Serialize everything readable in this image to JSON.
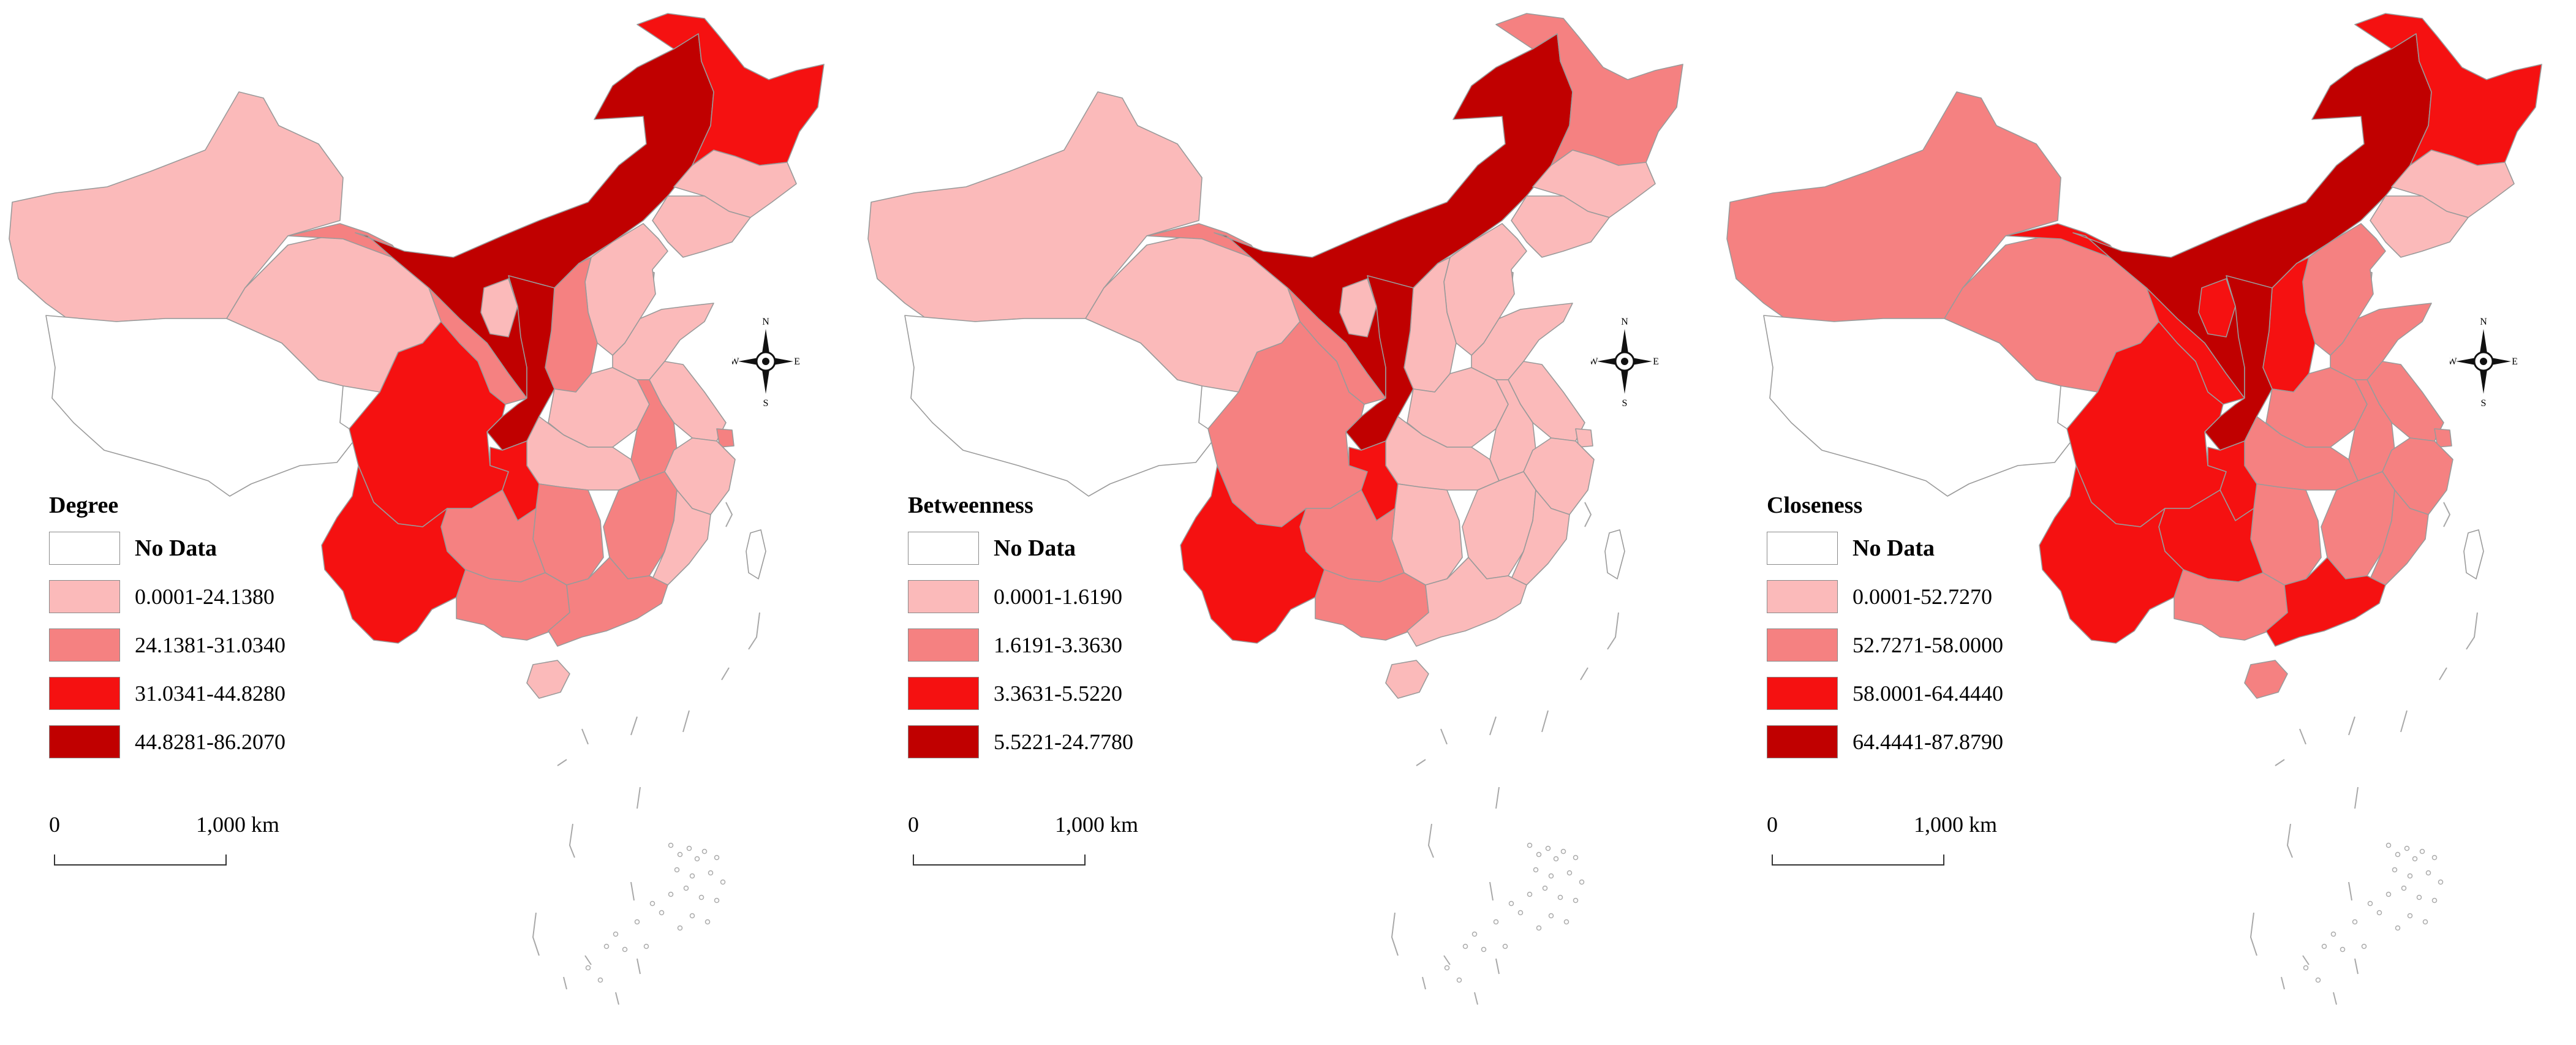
{
  "panels": [
    {
      "title": "Degree",
      "legend": {
        "nodata_label": "No Data",
        "classes": [
          {
            "label": "0.0001-24.1380",
            "color": "#FBBABA"
          },
          {
            "label": "24.1381-31.0340",
            "color": "#F58181"
          },
          {
            "label": "31.0341-44.8280",
            "color": "#F51111"
          },
          {
            "label": "44.8281-86.2070",
            "color": "#C00000"
          }
        ]
      },
      "regions": {
        "xinjiang": 1,
        "tibet": 0,
        "qinghai": 1,
        "gansu": 2,
        "inner_mongolia": 4,
        "heilongjiang": 3,
        "jilin": 1,
        "liaoning": 1,
        "beijing": 2,
        "tianjin": 1,
        "hebei": 1,
        "shanxi": 2,
        "ningxia": 1,
        "shaanxi": 4,
        "henan": 1,
        "shandong": 1,
        "jiangsu": 1,
        "anhui": 2,
        "shanghai": 2,
        "zhejiang": 1,
        "hubei": 1,
        "hunan": 2,
        "jiangxi": 2,
        "fujian": 1,
        "sichuan": 3,
        "chongqing": 3,
        "guizhou": 2,
        "yunnan": 3,
        "guangxi": 2,
        "guangdong": 2,
        "hainan": 1,
        "taiwan": 0
      }
    },
    {
      "title": "Betweenness",
      "legend": {
        "nodata_label": "No Data",
        "classes": [
          {
            "label": "0.0001-1.6190",
            "color": "#FBBABA"
          },
          {
            "label": "1.6191-3.3630",
            "color": "#F58181"
          },
          {
            "label": "3.3631-5.5220",
            "color": "#F51111"
          },
          {
            "label": "5.5221-24.7780",
            "color": "#C00000"
          }
        ]
      },
      "regions": {
        "xinjiang": 1,
        "tibet": 0,
        "qinghai": 1,
        "gansu": 2,
        "inner_mongolia": 4,
        "heilongjiang": 2,
        "jilin": 1,
        "liaoning": 1,
        "beijing": 1,
        "tianjin": 1,
        "hebei": 1,
        "shanxi": 1,
        "ningxia": 1,
        "shaanxi": 4,
        "henan": 1,
        "shandong": 1,
        "jiangsu": 1,
        "anhui": 1,
        "shanghai": 1,
        "zhejiang": 1,
        "hubei": 1,
        "hunan": 1,
        "jiangxi": 1,
        "fujian": 1,
        "sichuan": 2,
        "chongqing": 3,
        "guizhou": 2,
        "yunnan": 3,
        "guangxi": 2,
        "guangdong": 1,
        "hainan": 1,
        "taiwan": 0
      }
    },
    {
      "title": "Closeness",
      "legend": {
        "nodata_label": "No Data",
        "classes": [
          {
            "label": "0.0001-52.7270",
            "color": "#FBBABA"
          },
          {
            "label": "52.7271-58.0000",
            "color": "#F58181"
          },
          {
            "label": "58.0001-64.4440",
            "color": "#F51111"
          },
          {
            "label": "64.4441-87.8790",
            "color": "#C00000"
          }
        ]
      },
      "regions": {
        "xinjiang": 2,
        "tibet": 0,
        "qinghai": 2,
        "gansu": 3,
        "inner_mongolia": 4,
        "heilongjiang": 3,
        "jilin": 1,
        "liaoning": 1,
        "beijing": 1,
        "tianjin": 1,
        "hebei": 2,
        "shanxi": 3,
        "ningxia": 3,
        "shaanxi": 4,
        "henan": 2,
        "shandong": 2,
        "jiangsu": 2,
        "anhui": 2,
        "shanghai": 2,
        "zhejiang": 2,
        "hubei": 2,
        "hunan": 2,
        "jiangxi": 2,
        "fujian": 2,
        "sichuan": 3,
        "chongqing": 3,
        "guizhou": 3,
        "yunnan": 3,
        "guangxi": 2,
        "guangdong": 3,
        "hainan": 2,
        "taiwan": 0
      }
    }
  ],
  "scale": {
    "zero": "0",
    "max": "1,000 km"
  },
  "compass": {
    "n": "N",
    "s": "S",
    "e": "E",
    "w": "W"
  },
  "nodata_color": "#FFFFFF"
}
